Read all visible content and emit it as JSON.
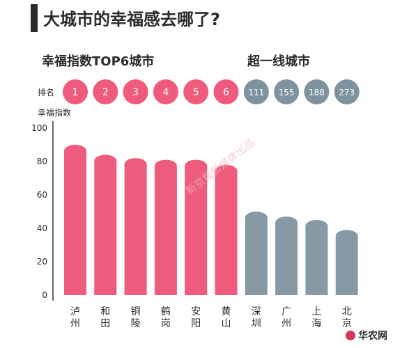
{
  "header": {
    "title": "大城市的幸福感去哪了?"
  },
  "colors": {
    "top6": "#ef5b7d",
    "tier1": "#8799a5",
    "rank_top6": "#ef5b7d",
    "rank_tier1": "#7e939f",
    "axis": "#333333",
    "text": "#2b2b2b"
  },
  "chart_data": {
    "type": "bar",
    "groups": [
      {
        "name": "幸福指数TOP6城市",
        "categories": [
          "泸州",
          "和田",
          "铜陵",
          "鹤岗",
          "安阳",
          "黄山"
        ],
        "ranks": [
          "1",
          "2",
          "3",
          "4",
          "5",
          "6"
        ],
        "values": [
          93,
          87,
          85,
          84,
          84,
          81
        ]
      },
      {
        "name": "超一线城市",
        "categories": [
          "深圳",
          "广州",
          "上海",
          "北京"
        ],
        "ranks": [
          "111",
          "155",
          "188",
          "273"
        ],
        "values": [
          53,
          50,
          48,
          42
        ]
      }
    ],
    "rank_label": "排名",
    "ylabel": "幸福指数",
    "ylim": [
      0,
      100
    ],
    "yticks": [
      0,
      20,
      40,
      60,
      80,
      100
    ]
  },
  "watermark": "新京报新媒体出品",
  "brand": {
    "label": "华农网"
  }
}
